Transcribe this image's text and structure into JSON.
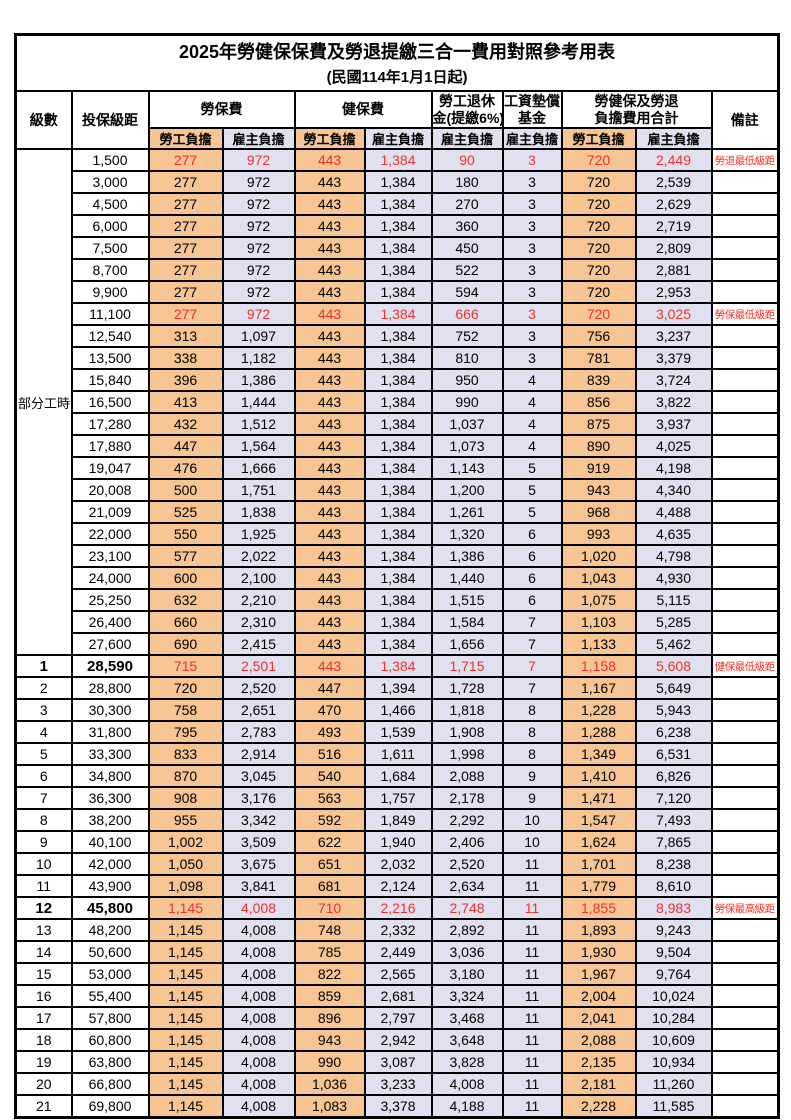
{
  "title": "2025年勞健保保費及勞退提繳三合一費用對照參考用表",
  "subtitle": "(民國114年1月1日起)",
  "colors": {
    "employee_bg": "#f7c493",
    "employer_bg": "#e1e0f1",
    "highlight_red": "#ee3226"
  },
  "table": {
    "headers": {
      "level": "級數",
      "salary": "投保級距",
      "labor": "勞保費",
      "health": "健保費",
      "pension_line1": "勞工退休",
      "pension_line2": "金(提繳6%)",
      "wage_fund_line1": "工資墊償",
      "wage_fund_line2": "基金",
      "total_line1": "勞健保及勞退",
      "total_line2": "負擔費用合計",
      "note": "備註",
      "employee": "勞工負擔",
      "employer": "雇主負擔"
    },
    "part_time_label": "部分工時",
    "rows": [
      {
        "lv": "",
        "sal": "1,500",
        "le": "277",
        "lr": "972",
        "he": "443",
        "hr": "1,384",
        "pe": "90",
        "fu": "3",
        "te": "720",
        "tr": "2,449",
        "note": "勞退最低級距",
        "red": true
      },
      {
        "lv": "",
        "sal": "3,000",
        "le": "277",
        "lr": "972",
        "he": "443",
        "hr": "1,384",
        "pe": "180",
        "fu": "3",
        "te": "720",
        "tr": "2,539"
      },
      {
        "lv": "",
        "sal": "4,500",
        "le": "277",
        "lr": "972",
        "he": "443",
        "hr": "1,384",
        "pe": "270",
        "fu": "3",
        "te": "720",
        "tr": "2,629"
      },
      {
        "lv": "",
        "sal": "6,000",
        "le": "277",
        "lr": "972",
        "he": "443",
        "hr": "1,384",
        "pe": "360",
        "fu": "3",
        "te": "720",
        "tr": "2,719"
      },
      {
        "lv": "",
        "sal": "7,500",
        "le": "277",
        "lr": "972",
        "he": "443",
        "hr": "1,384",
        "pe": "450",
        "fu": "3",
        "te": "720",
        "tr": "2,809"
      },
      {
        "lv": "",
        "sal": "8,700",
        "le": "277",
        "lr": "972",
        "he": "443",
        "hr": "1,384",
        "pe": "522",
        "fu": "3",
        "te": "720",
        "tr": "2,881"
      },
      {
        "lv": "",
        "sal": "9,900",
        "le": "277",
        "lr": "972",
        "he": "443",
        "hr": "1,384",
        "pe": "594",
        "fu": "3",
        "te": "720",
        "tr": "2,953"
      },
      {
        "lv": "",
        "sal": "11,100",
        "le": "277",
        "lr": "972",
        "he": "443",
        "hr": "1,384",
        "pe": "666",
        "fu": "3",
        "te": "720",
        "tr": "3,025",
        "note": "勞保最低級距",
        "red": true
      },
      {
        "lv": "",
        "sal": "12,540",
        "le": "313",
        "lr": "1,097",
        "he": "443",
        "hr": "1,384",
        "pe": "752",
        "fu": "3",
        "te": "756",
        "tr": "3,237"
      },
      {
        "lv": "",
        "sal": "13,500",
        "le": "338",
        "lr": "1,182",
        "he": "443",
        "hr": "1,384",
        "pe": "810",
        "fu": "3",
        "te": "781",
        "tr": "3,379"
      },
      {
        "lv": "",
        "sal": "15,840",
        "le": "396",
        "lr": "1,386",
        "he": "443",
        "hr": "1,384",
        "pe": "950",
        "fu": "4",
        "te": "839",
        "tr": "3,724"
      },
      {
        "lv": "",
        "sal": "16,500",
        "le": "413",
        "lr": "1,444",
        "he": "443",
        "hr": "1,384",
        "pe": "990",
        "fu": "4",
        "te": "856",
        "tr": "3,822"
      },
      {
        "lv": "",
        "sal": "17,280",
        "le": "432",
        "lr": "1,512",
        "he": "443",
        "hr": "1,384",
        "pe": "1,037",
        "fu": "4",
        "te": "875",
        "tr": "3,937"
      },
      {
        "lv": "",
        "sal": "17,880",
        "le": "447",
        "lr": "1,564",
        "he": "443",
        "hr": "1,384",
        "pe": "1,073",
        "fu": "4",
        "te": "890",
        "tr": "4,025"
      },
      {
        "lv": "",
        "sal": "19,047",
        "le": "476",
        "lr": "1,666",
        "he": "443",
        "hr": "1,384",
        "pe": "1,143",
        "fu": "5",
        "te": "919",
        "tr": "4,198"
      },
      {
        "lv": "",
        "sal": "20,008",
        "le": "500",
        "lr": "1,751",
        "he": "443",
        "hr": "1,384",
        "pe": "1,200",
        "fu": "5",
        "te": "943",
        "tr": "4,340"
      },
      {
        "lv": "",
        "sal": "21,009",
        "le": "525",
        "lr": "1,838",
        "he": "443",
        "hr": "1,384",
        "pe": "1,261",
        "fu": "5",
        "te": "968",
        "tr": "4,488"
      },
      {
        "lv": "",
        "sal": "22,000",
        "le": "550",
        "lr": "1,925",
        "he": "443",
        "hr": "1,384",
        "pe": "1,320",
        "fu": "6",
        "te": "993",
        "tr": "4,635"
      },
      {
        "lv": "",
        "sal": "23,100",
        "le": "577",
        "lr": "2,022",
        "he": "443",
        "hr": "1,384",
        "pe": "1,386",
        "fu": "6",
        "te": "1,020",
        "tr": "4,798"
      },
      {
        "lv": "",
        "sal": "24,000",
        "le": "600",
        "lr": "2,100",
        "he": "443",
        "hr": "1,384",
        "pe": "1,440",
        "fu": "6",
        "te": "1,043",
        "tr": "4,930"
      },
      {
        "lv": "",
        "sal": "25,250",
        "le": "632",
        "lr": "2,210",
        "he": "443",
        "hr": "1,384",
        "pe": "1,515",
        "fu": "6",
        "te": "1,075",
        "tr": "5,115"
      },
      {
        "lv": "",
        "sal": "26,400",
        "le": "660",
        "lr": "2,310",
        "he": "443",
        "hr": "1,384",
        "pe": "1,584",
        "fu": "7",
        "te": "1,103",
        "tr": "5,285"
      },
      {
        "lv": "",
        "sal": "27,600",
        "le": "690",
        "lr": "2,415",
        "he": "443",
        "hr": "1,384",
        "pe": "1,656",
        "fu": "7",
        "te": "1,133",
        "tr": "5,462"
      },
      {
        "lv": "1",
        "sal": "28,590",
        "le": "715",
        "lr": "2,501",
        "he": "443",
        "hr": "1,384",
        "pe": "1,715",
        "fu": "7",
        "te": "1,158",
        "tr": "5,608",
        "note": "健保最低級距",
        "red": true,
        "em": true
      },
      {
        "lv": "2",
        "sal": "28,800",
        "le": "720",
        "lr": "2,520",
        "he": "447",
        "hr": "1,394",
        "pe": "1,728",
        "fu": "7",
        "te": "1,167",
        "tr": "5,649"
      },
      {
        "lv": "3",
        "sal": "30,300",
        "le": "758",
        "lr": "2,651",
        "he": "470",
        "hr": "1,466",
        "pe": "1,818",
        "fu": "8",
        "te": "1,228",
        "tr": "5,943"
      },
      {
        "lv": "4",
        "sal": "31,800",
        "le": "795",
        "lr": "2,783",
        "he": "493",
        "hr": "1,539",
        "pe": "1,908",
        "fu": "8",
        "te": "1,288",
        "tr": "6,238"
      },
      {
        "lv": "5",
        "sal": "33,300",
        "le": "833",
        "lr": "2,914",
        "he": "516",
        "hr": "1,611",
        "pe": "1,998",
        "fu": "8",
        "te": "1,349",
        "tr": "6,531"
      },
      {
        "lv": "6",
        "sal": "34,800",
        "le": "870",
        "lr": "3,045",
        "he": "540",
        "hr": "1,684",
        "pe": "2,088",
        "fu": "9",
        "te": "1,410",
        "tr": "6,826"
      },
      {
        "lv": "7",
        "sal": "36,300",
        "le": "908",
        "lr": "3,176",
        "he": "563",
        "hr": "1,757",
        "pe": "2,178",
        "fu": "9",
        "te": "1,471",
        "tr": "7,120"
      },
      {
        "lv": "8",
        "sal": "38,200",
        "le": "955",
        "lr": "3,342",
        "he": "592",
        "hr": "1,849",
        "pe": "2,292",
        "fu": "10",
        "te": "1,547",
        "tr": "7,493"
      },
      {
        "lv": "9",
        "sal": "40,100",
        "le": "1,002",
        "lr": "3,509",
        "he": "622",
        "hr": "1,940",
        "pe": "2,406",
        "fu": "10",
        "te": "1,624",
        "tr": "7,865"
      },
      {
        "lv": "10",
        "sal": "42,000",
        "le": "1,050",
        "lr": "3,675",
        "he": "651",
        "hr": "2,032",
        "pe": "2,520",
        "fu": "11",
        "te": "1,701",
        "tr": "8,238"
      },
      {
        "lv": "11",
        "sal": "43,900",
        "le": "1,098",
        "lr": "3,841",
        "he": "681",
        "hr": "2,124",
        "pe": "2,634",
        "fu": "11",
        "te": "1,779",
        "tr": "8,610"
      },
      {
        "lv": "12",
        "sal": "45,800",
        "le": "1,145",
        "lr": "4,008",
        "he": "710",
        "hr": "2,216",
        "pe": "2,748",
        "fu": "11",
        "te": "1,855",
        "tr": "8,983",
        "note": "勞保最高級距",
        "red": true,
        "em": true
      },
      {
        "lv": "13",
        "sal": "48,200",
        "le": "1,145",
        "lr": "4,008",
        "he": "748",
        "hr": "2,332",
        "pe": "2,892",
        "fu": "11",
        "te": "1,893",
        "tr": "9,243"
      },
      {
        "lv": "14",
        "sal": "50,600",
        "le": "1,145",
        "lr": "4,008",
        "he": "785",
        "hr": "2,449",
        "pe": "3,036",
        "fu": "11",
        "te": "1,930",
        "tr": "9,504"
      },
      {
        "lv": "15",
        "sal": "53,000",
        "le": "1,145",
        "lr": "4,008",
        "he": "822",
        "hr": "2,565",
        "pe": "3,180",
        "fu": "11",
        "te": "1,967",
        "tr": "9,764"
      },
      {
        "lv": "16",
        "sal": "55,400",
        "le": "1,145",
        "lr": "4,008",
        "he": "859",
        "hr": "2,681",
        "pe": "3,324",
        "fu": "11",
        "te": "2,004",
        "tr": "10,024"
      },
      {
        "lv": "17",
        "sal": "57,800",
        "le": "1,145",
        "lr": "4,008",
        "he": "896",
        "hr": "2,797",
        "pe": "3,468",
        "fu": "11",
        "te": "2,041",
        "tr": "10,284"
      },
      {
        "lv": "18",
        "sal": "60,800",
        "le": "1,145",
        "lr": "4,008",
        "he": "943",
        "hr": "2,942",
        "pe": "3,648",
        "fu": "11",
        "te": "2,088",
        "tr": "10,609"
      },
      {
        "lv": "19",
        "sal": "63,800",
        "le": "1,145",
        "lr": "4,008",
        "he": "990",
        "hr": "3,087",
        "pe": "3,828",
        "fu": "11",
        "te": "2,135",
        "tr": "10,934"
      },
      {
        "lv": "20",
        "sal": "66,800",
        "le": "1,145",
        "lr": "4,008",
        "he": "1,036",
        "hr": "3,233",
        "pe": "4,008",
        "fu": "11",
        "te": "2,181",
        "tr": "11,260"
      },
      {
        "lv": "21",
        "sal": "69,800",
        "le": "1,145",
        "lr": "4,008",
        "he": "1,083",
        "hr": "3,378",
        "pe": "4,188",
        "fu": "11",
        "te": "2,228",
        "tr": "11,585"
      }
    ]
  }
}
